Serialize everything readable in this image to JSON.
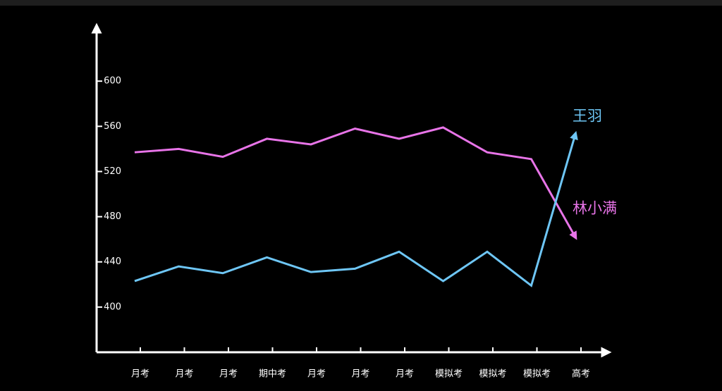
{
  "chart_data": {
    "type": "line",
    "categories": [
      "月考",
      "月考",
      "月考",
      "期中考",
      "月考",
      "月考",
      "月考",
      "模拟考",
      "模拟考",
      "模拟考",
      "高考"
    ],
    "series": [
      {
        "name": "林小满",
        "color": "#e874e8",
        "values": [
          537,
          540,
          533,
          549,
          544,
          558,
          549,
          559,
          537,
          531,
          462
        ]
      },
      {
        "name": "王羽",
        "color": "#6ec6f5",
        "values": [
          423,
          436,
          430,
          444,
          431,
          434,
          449,
          423,
          449,
          419,
          553
        ]
      }
    ],
    "ylim": [
      360,
      650
    ],
    "yticks": [
      400,
      440,
      480,
      520,
      560,
      600
    ]
  }
}
